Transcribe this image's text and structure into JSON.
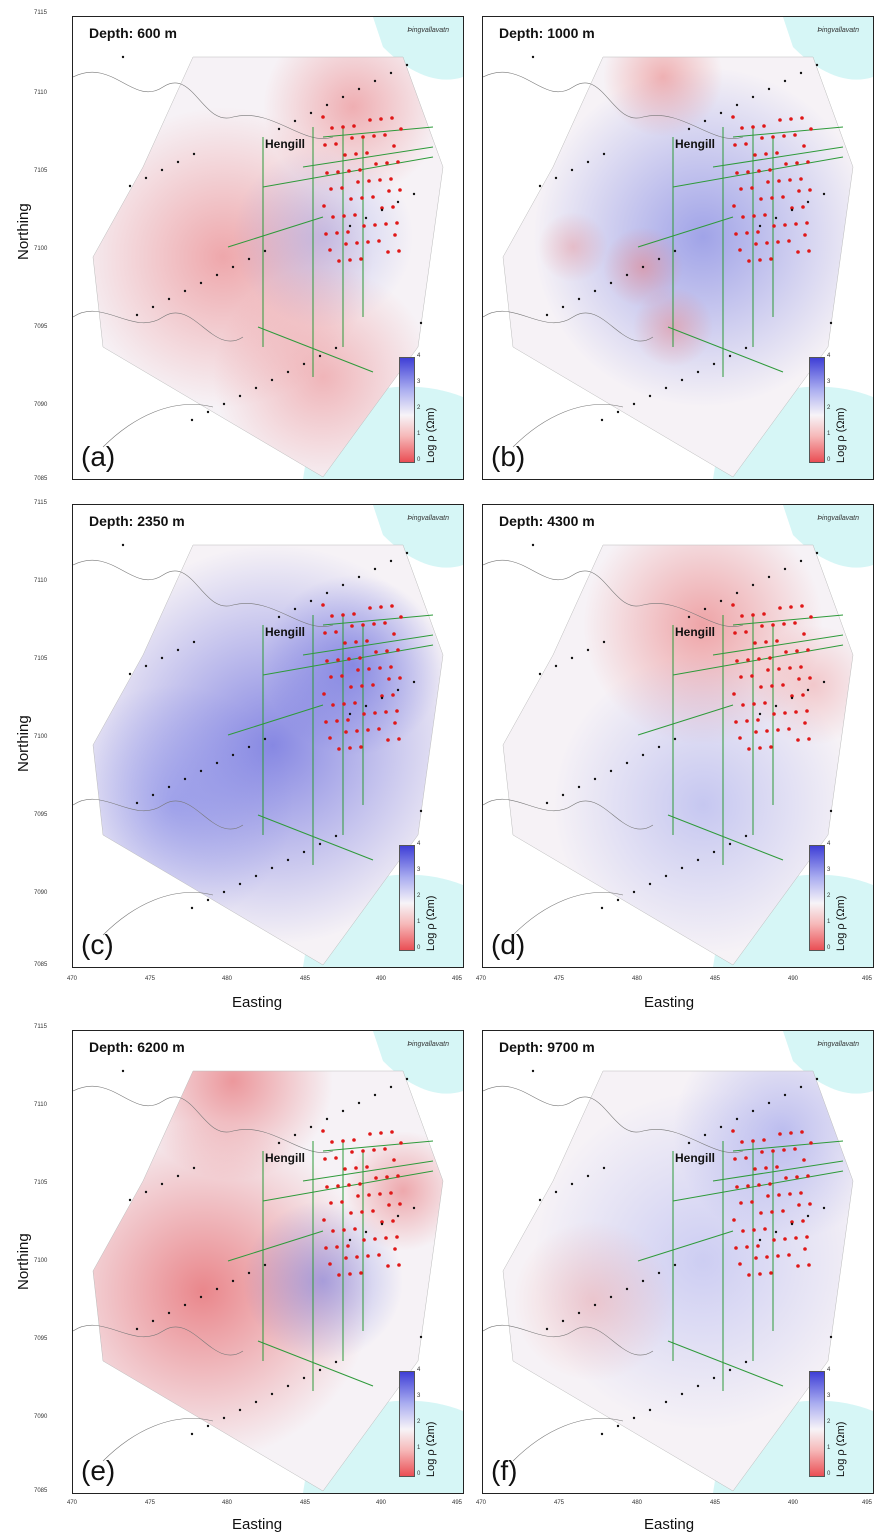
{
  "panels": [
    {
      "id": "a",
      "letter": "(a)",
      "depth": "Depth: 600 m"
    },
    {
      "id": "b",
      "letter": "(b)",
      "depth": "Depth: 1000 m"
    },
    {
      "id": "c",
      "letter": "(c)",
      "depth": "Depth: 2350 m"
    },
    {
      "id": "d",
      "letter": "(d)",
      "depth": "Depth: 4300 m"
    },
    {
      "id": "e",
      "letter": "(e)",
      "depth": "Depth: 6200 m"
    },
    {
      "id": "f",
      "letter": "(f)",
      "depth": "Depth: 9700 m"
    }
  ],
  "place_label": "Þingvallavatn",
  "town_label": "Hengill",
  "axes": {
    "x_label": "Easting",
    "y_label": "Northing",
    "x_ticks": [
      "470",
      "475",
      "480",
      "485",
      "490",
      "495"
    ],
    "y_ticks_top": [
      "7115",
      "7110",
      "7105",
      "7100",
      "7095",
      "7090",
      "7085"
    ],
    "y_ticks_bottom": [
      "7115",
      "7110",
      "7105",
      "7100",
      "7095",
      "7090",
      "7085"
    ]
  },
  "colorbar": {
    "label": "Log ρ (Ωm)",
    "ticks": [
      "0",
      "1",
      "2",
      "3",
      "4"
    ],
    "low_color": "#ea4f55",
    "mid_color": "#f7f4f8",
    "high_color": "#3f3fd6"
  },
  "lake_color": "#d6f6f6"
}
